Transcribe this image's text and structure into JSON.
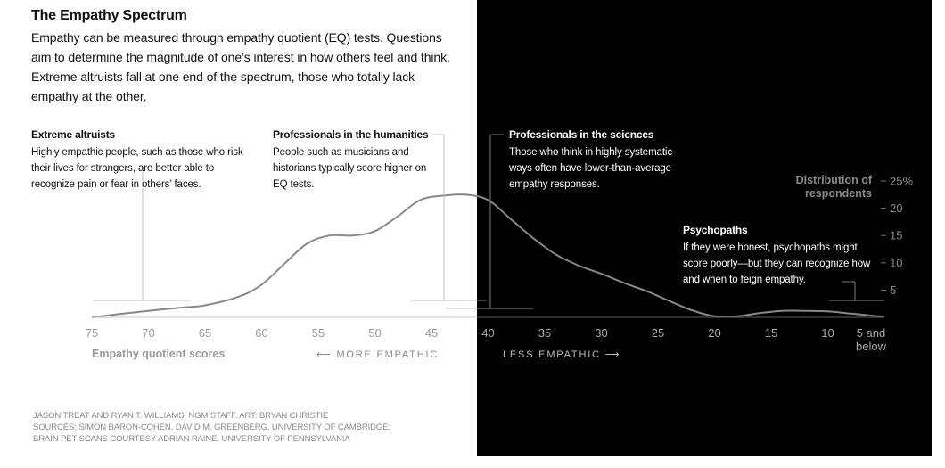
{
  "title": "The Empathy Spectrum",
  "intro": "Empathy can be measured through empathy quotient (EQ) tests. Questions aim to determine the magnitude of one’s interest in how others feel and think. Extreme altruists fall at one end of the spectrum, those who totally lack empathy at the other.",
  "annotations": {
    "altruists": {
      "heading": "Extreme altruists",
      "body": "Highly empathic people, such as those who risk their lives for strangers, are better able to recognize pain or fear in others’ faces."
    },
    "humanities": {
      "heading": "Professionals in the humanities",
      "body": "People such as musicians and historians typically score higher on EQ tests."
    },
    "sciences": {
      "heading": "Professionals in the sciences",
      "body": "Those who think in highly systematic ways often have lower-than-average empathy responses."
    },
    "psychopaths": {
      "heading": "Psychopaths",
      "body": "If they were honest, psychopaths might score poorly—but they can recognize how and when to feign empathy."
    }
  },
  "direction": {
    "more": "MORE EMPATHIC",
    "less": "LESS EMPATHIC"
  },
  "credits": [
    "JASON TREAT AND RYAN T. WILLIAMS, NGM STAFF. ART: BRYAN CHRISTIE",
    "SOURCES: SIMON BARON-COHEN, DAVID M. GREENBERG, UNIVERSITY OF CAMBRIDGE;",
    "BRAIN PET SCANS COURTESY ADRIAN RAINE, UNIVERSITY OF PENNSYLVANIA"
  ],
  "colors": {
    "background_left": "#ffffff",
    "background_right": "#000000",
    "curve": "#888888",
    "axis_text": "#9a9a9a"
  },
  "chart_data": {
    "type": "area",
    "title": "The Empathy Spectrum",
    "xlabel": "Empathy quotient scores",
    "ylabel": "Distribution of respondents",
    "x_direction": "descending",
    "xlim": [
      75,
      5
    ],
    "ylim": [
      0,
      25
    ],
    "x_ticks": [
      "75",
      "70",
      "65",
      "60",
      "55",
      "50",
      "45",
      "40",
      "35",
      "30",
      "25",
      "20",
      "15",
      "10",
      "5 and below"
    ],
    "y_ticks": [
      "25%",
      "20",
      "15",
      "10",
      "5"
    ],
    "y_tick_values": [
      25,
      20,
      15,
      10,
      5
    ],
    "grid": false,
    "series": [
      {
        "x": [
          75,
          73,
          70,
          67,
          65,
          62,
          60,
          58,
          56,
          54,
          52,
          50,
          48,
          46,
          44,
          42,
          40,
          38,
          36,
          34,
          32,
          30,
          28,
          26,
          24,
          22,
          20,
          18,
          16,
          14,
          12,
          10,
          8,
          6,
          5
        ],
        "values": [
          0,
          0.5,
          1.2,
          1.8,
          2.2,
          3.8,
          6,
          9.8,
          13.5,
          15,
          15,
          15.8,
          18.5,
          21.5,
          22.3,
          22.5,
          21.5,
          18,
          14.5,
          11.5,
          9.5,
          8,
          6.3,
          4.8,
          3,
          1.3,
          0.2,
          0.2,
          0.8,
          1.2,
          1.2,
          1.1,
          0.7,
          0.3,
          0.1
        ]
      }
    ],
    "annotation_links": [
      {
        "x": 70.5,
        "label": "Extreme altruists"
      },
      {
        "x": 43.5,
        "label": "Professionals in the humanities"
      },
      {
        "x": 40,
        "label": "Professionals in the sciences"
      },
      {
        "x": 7,
        "label": "Psychopaths"
      }
    ]
  }
}
